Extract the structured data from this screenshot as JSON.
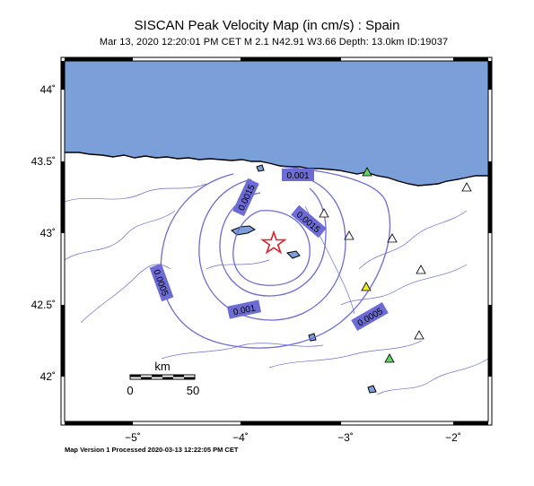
{
  "header": {
    "title": "SISCAN Peak Velocity Map (in cm/s) : Spain",
    "subtitle": "Mar 13, 2020 12:20:01 PM CET   M 2.1   N42.91 W3.66   Depth: 13.0km   ID:19037"
  },
  "footer": {
    "text": "Map Version 1 Processed 2020-03-13 12:22:05 PM CET"
  },
  "map": {
    "colors": {
      "sea": "#7ba0d9",
      "land": "#ffffff",
      "contour": "#6d6bd6",
      "contour_label_bg": "#6d6bd6",
      "rivers": "#6c6cd0",
      "epicenter": "#e0202a"
    },
    "axes": {
      "lon_ticks": [
        "−5˚",
        "−4˚",
        "−3˚",
        "−2˚"
      ],
      "lat_ticks": [
        "44˚",
        "43.5˚",
        "43˚",
        "42.5˚",
        "42˚"
      ]
    },
    "contour_labels": [
      "0.001",
      "0.0015",
      "0.0015",
      "0.0005",
      "0.001",
      "0.0005"
    ],
    "scale_bar": {
      "unit": "km",
      "labels": [
        "0",
        "50"
      ]
    },
    "stations": [
      {
        "color": "#5fd65f"
      },
      {
        "color": "#ffffff"
      },
      {
        "color": "#ffffff"
      },
      {
        "color": "#ffffff"
      },
      {
        "color": "#ffffff"
      },
      {
        "color": "#f0e62a"
      },
      {
        "color": "#ffffff"
      },
      {
        "color": "#ffffff"
      },
      {
        "color": "#5fd65f"
      }
    ]
  }
}
